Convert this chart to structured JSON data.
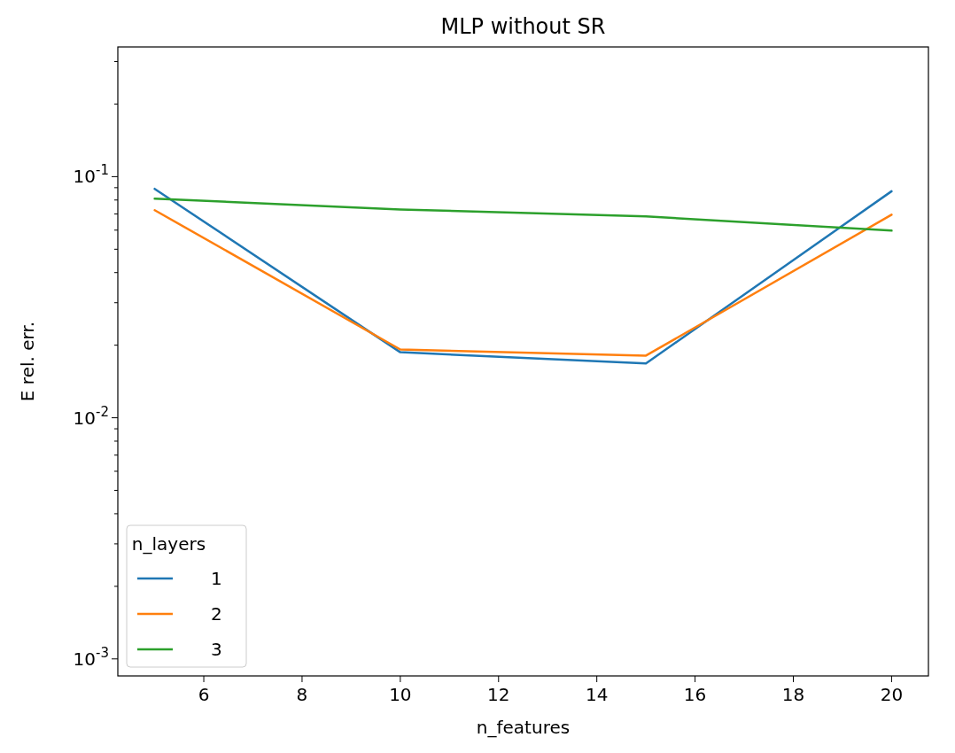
{
  "chart_data": {
    "type": "line",
    "title": "MLP without SR",
    "xlabel": "n_features",
    "ylabel": "E rel. err.",
    "legend_title": "n_layers",
    "legend": "bottom left",
    "log": "y",
    "grid": false,
    "marker": "none",
    "line_style": "solid",
    "x": [
      5,
      10,
      15,
      20
    ],
    "xlim": [
      4.25,
      20.75
    ],
    "xticks": [
      6,
      8,
      10,
      12,
      14,
      16,
      18,
      20
    ],
    "ylim": [
      0.00085,
      0.345
    ],
    "yticks": [
      {
        "value": 0.001,
        "label": "10$^{-3}$"
      },
      {
        "value": 0.002,
        "label": null
      },
      {
        "value": 0.003,
        "label": null
      },
      {
        "value": 0.004,
        "label": null
      },
      {
        "value": 0.005,
        "label": null
      },
      {
        "value": 0.006,
        "label": null
      },
      {
        "value": 0.007,
        "label": null
      },
      {
        "value": 0.008,
        "label": null
      },
      {
        "value": 0.009,
        "label": null
      },
      {
        "value": 0.01,
        "label": "10$^{-2}$"
      },
      {
        "value": 0.02,
        "label": null
      },
      {
        "value": 0.03,
        "label": null
      },
      {
        "value": 0.04,
        "label": null
      },
      {
        "value": 0.05,
        "label": null
      },
      {
        "value": 0.06,
        "label": null
      },
      {
        "value": 0.07,
        "label": null
      },
      {
        "value": 0.08,
        "label": null
      },
      {
        "value": 0.09,
        "label": null
      },
      {
        "value": 0.1,
        "label": "10$^{-1}$"
      },
      {
        "value": 0.2,
        "label": null
      },
      {
        "value": 0.3,
        "label": null
      }
    ],
    "series": [
      {
        "name": "1",
        "color": "#1f77b4",
        "values": [
          0.089,
          0.0187,
          0.0168,
          0.087
        ]
      },
      {
        "name": "2",
        "color": "#ff7f0e",
        "values": [
          0.0726,
          0.0192,
          0.0181,
          0.0695
        ]
      },
      {
        "name": "3",
        "color": "#2ca02c",
        "values": [
          0.081,
          0.0731,
          0.0684,
          0.0597
        ]
      }
    ]
  }
}
